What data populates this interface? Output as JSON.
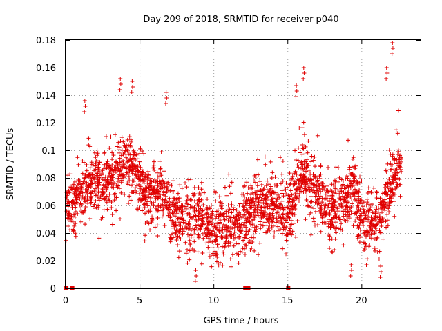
{
  "chart_data": {
    "type": "scatter",
    "title": "Day 209 of 2018, SRMTID for receiver p040",
    "xlabel": "GPS time / hours",
    "ylabel": "SRMTID / TECUs",
    "xlim": [
      0,
      24
    ],
    "ylim": [
      0,
      0.18
    ],
    "x_ticks": [
      0,
      5,
      10,
      15,
      20
    ],
    "x_tick_labels": [
      "0",
      "5",
      "10",
      "15",
      "20"
    ],
    "y_ticks": [
      0,
      0.02,
      0.04,
      0.06,
      0.08,
      0.1,
      0.12,
      0.14,
      0.16,
      0.18
    ],
    "y_tick_labels": [
      "0",
      "0.02",
      "0.04",
      "0.06",
      "0.08",
      "0.1",
      "0.12",
      "0.14",
      "0.16",
      "0.18"
    ],
    "grid": true,
    "marker": "+",
    "series_color": "#e00000",
    "series": [
      {
        "name": "p040",
        "profile": {
          "x": [
            0.0,
            0.5,
            1.0,
            1.5,
            2.0,
            2.5,
            3.0,
            3.5,
            4.0,
            4.5,
            5.0,
            5.5,
            6.0,
            6.5,
            7.0,
            7.5,
            8.0,
            8.5,
            9.0,
            9.5,
            10.0,
            10.5,
            11.0,
            11.5,
            12.0,
            12.5,
            13.0,
            13.5,
            14.0,
            14.5,
            15.0,
            15.5,
            16.0,
            16.5,
            17.0,
            17.5,
            18.0,
            18.5,
            19.0,
            19.5,
            20.0,
            20.5,
            21.0,
            21.5,
            22.0,
            22.5
          ],
          "y": [
            0.06,
            0.062,
            0.07,
            0.074,
            0.078,
            0.075,
            0.08,
            0.085,
            0.09,
            0.088,
            0.075,
            0.065,
            0.07,
            0.072,
            0.06,
            0.05,
            0.047,
            0.05,
            0.055,
            0.045,
            0.04,
            0.045,
            0.043,
            0.045,
            0.05,
            0.055,
            0.06,
            0.058,
            0.06,
            0.055,
            0.05,
            0.07,
            0.085,
            0.075,
            0.07,
            0.06,
            0.055,
            0.06,
            0.065,
            0.075,
            0.05,
            0.05,
            0.045,
            0.06,
            0.075,
            0.09
          ]
        },
        "spread": [
          0.015,
          0.04
        ],
        "n_points": 2600,
        "peaks": [
          {
            "x": 1.3,
            "y": 0.136
          },
          {
            "x": 3.7,
            "y": 0.152
          },
          {
            "x": 4.5,
            "y": 0.15
          },
          {
            "x": 6.8,
            "y": 0.142
          },
          {
            "x": 15.6,
            "y": 0.147
          },
          {
            "x": 16.1,
            "y": 0.16
          },
          {
            "x": 21.7,
            "y": 0.16
          },
          {
            "x": 22.1,
            "y": 0.178
          },
          {
            "x": 8.8,
            "y": 0.013
          },
          {
            "x": 21.3,
            "y": 0.016
          },
          {
            "x": 19.3,
            "y": 0.017
          }
        ],
        "zero_markers_x": [
          0.05,
          0.45,
          12.15,
          12.35,
          15.05
        ]
      }
    ]
  }
}
